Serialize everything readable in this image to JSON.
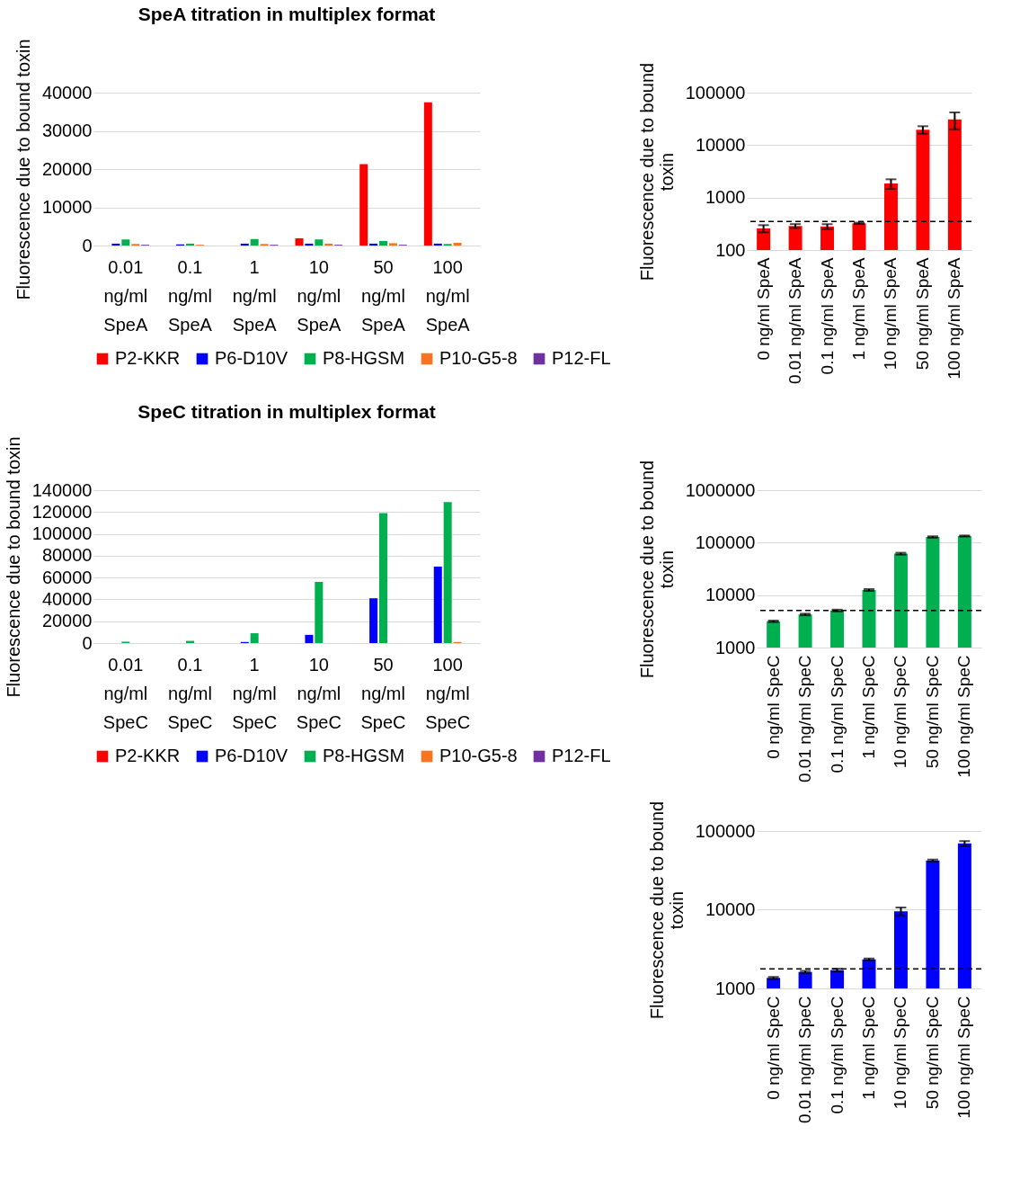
{
  "chart_data": [
    {
      "type": "bar",
      "title": "SpeA titration in multiplex format",
      "ylabel": "Fluorescence due to bound toxin",
      "categories": [
        "0.01 ng/ml SpeA",
        "0.1 ng/ml SpeA",
        "1 ng/ml SpeA",
        "10 ng/ml SpeA",
        "50 ng/ml SpeA",
        "100 ng/ml SpeA"
      ],
      "ylim": [
        0,
        40000
      ],
      "yticks": [
        0,
        10000,
        20000,
        30000,
        40000
      ],
      "grid": "y",
      "legend": "bottom",
      "series": [
        {
          "name": "P2-KKR",
          "color": "#ff0000",
          "values": [
            0,
            0,
            0,
            1900,
            21300,
            37500
          ]
        },
        {
          "name": "P6-D10V",
          "color": "#0000ff",
          "values": [
            500,
            300,
            500,
            500,
            500,
            500
          ]
        },
        {
          "name": "P8-HGSM",
          "color": "#00b050",
          "values": [
            1600,
            500,
            1700,
            1600,
            1200,
            400
          ]
        },
        {
          "name": "P10-G5-8",
          "color": "#fa7320",
          "values": [
            400,
            200,
            400,
            500,
            600,
            700
          ]
        },
        {
          "name": "P12-FL",
          "color": "#7030a0",
          "values": [
            200,
            0,
            200,
            200,
            200,
            0
          ]
        }
      ]
    },
    {
      "type": "bar",
      "ylabel": "Fluorescence due to bound toxin",
      "categories": [
        "0 ng/ml SpeA",
        "0.01 ng/ml SpeA",
        "0.1 ng/ml SpeA",
        "1 ng/ml SpeA",
        "10 ng/ml SpeA",
        "50 ng/ml SpeA",
        "100 ng/ml SpeA"
      ],
      "log": true,
      "ylim": [
        100,
        100000
      ],
      "yticks": [
        100,
        1000,
        10000,
        100000
      ],
      "grid": "y",
      "color": "#ff0000",
      "values": [
        258,
        287,
        281,
        323,
        1850,
        19700,
        31000
      ],
      "errors": [
        40,
        25,
        30,
        10,
        380,
        3200,
        11000
      ],
      "ref_lines": [
        {
          "axis": "y",
          "value": 350,
          "line_style": "dashed"
        }
      ]
    },
    {
      "type": "bar",
      "title": "SpeC titration in multiplex format",
      "ylabel": "Fluorescence due to bound toxin",
      "categories": [
        "0.01 ng/ml SpeC",
        "0.1 ng/ml SpeC",
        "1 ng/ml SpeC",
        "10 ng/ml SpeC",
        "50 ng/ml SpeC",
        "100 ng/ml SpeC"
      ],
      "ylim": [
        0,
        140000
      ],
      "yticks": [
        0,
        20000,
        40000,
        60000,
        80000,
        100000,
        120000,
        140000
      ],
      "grid": "y",
      "legend": "bottom",
      "series": [
        {
          "name": "P2-KKR",
          "color": "#ff0000",
          "values": [
            0,
            0,
            0,
            0,
            0,
            0
          ]
        },
        {
          "name": "P6-D10V",
          "color": "#0000ff",
          "values": [
            0,
            0,
            1000,
            7500,
            41000,
            70000
          ]
        },
        {
          "name": "P8-HGSM",
          "color": "#00b050",
          "values": [
            1200,
            2000,
            9000,
            56000,
            119000,
            129000
          ]
        },
        {
          "name": "P10-G5-8",
          "color": "#fa7320",
          "values": [
            0,
            0,
            0,
            0,
            0,
            1000
          ]
        },
        {
          "name": "P12-FL",
          "color": "#7030a0",
          "values": [
            0,
            0,
            0,
            0,
            0,
            0
          ]
        }
      ]
    },
    {
      "type": "bar",
      "ylabel": "Fluorescence due to bound toxin",
      "categories": [
        "0 ng/ml SpeC",
        "0.01 ng/ml SpeC",
        "0.1 ng/ml SpeC",
        "1 ng/ml SpeC",
        "10 ng/ml SpeC",
        "50 ng/ml SpeC",
        "100 ng/ml SpeC"
      ],
      "log": true,
      "ylim": [
        1000,
        1000000
      ],
      "yticks": [
        1000,
        10000,
        100000,
        1000000
      ],
      "grid": "y",
      "color": "#00b050",
      "values": [
        3160,
        4270,
        5080,
        12500,
        61600,
        128000,
        133700
      ],
      "errors": [
        100,
        150,
        200,
        500,
        2500,
        4000,
        3000
      ],
      "ref_lines": [
        {
          "axis": "y",
          "value": 5100,
          "line_style": "dashed"
        }
      ]
    },
    {
      "type": "bar",
      "ylabel": "Fluorescence due to bound toxin",
      "categories": [
        "0 ng/ml SpeC",
        "0.01 ng/ml SpeC",
        "0.1 ng/ml SpeC",
        "1 ng/ml SpeC",
        "10 ng/ml SpeC",
        "50 ng/ml SpeC",
        "100 ng/ml SpeC"
      ],
      "log": true,
      "ylim": [
        1000,
        100000
      ],
      "yticks": [
        1000,
        10000,
        100000
      ],
      "grid": "y",
      "color": "#0000ff",
      "values": [
        1360,
        1620,
        1710,
        2340,
        9580,
        42200,
        69500
      ],
      "errors": [
        40,
        50,
        70,
        60,
        1100,
        1200,
        5000
      ],
      "ref_lines": [
        {
          "axis": "y",
          "value": 1770,
          "line_style": "dashed"
        }
      ]
    }
  ]
}
